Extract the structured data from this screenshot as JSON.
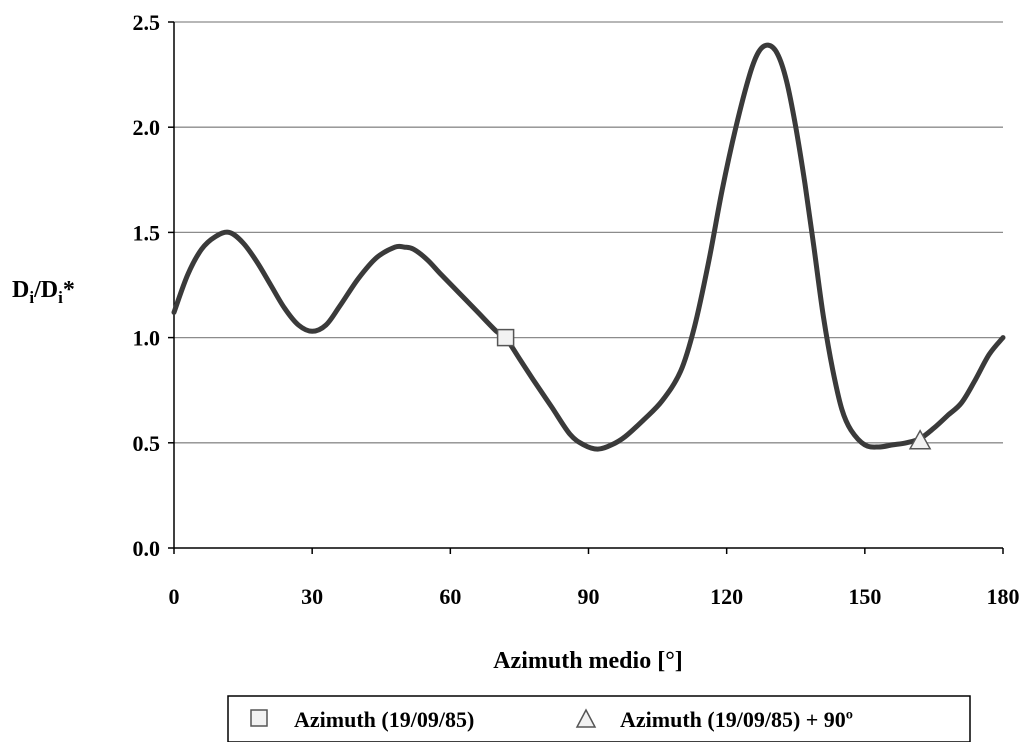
{
  "chart_data": {
    "type": "line",
    "xlabel": "Azimuth medio [°]",
    "ylabel": "Di/Di*",
    "ylabel_main": "D",
    "ylabel_sub": "i",
    "ylabel_sep": "/D",
    "ylabel_sub2": "i",
    "ylabel_star": "*",
    "xlim": [
      0,
      180
    ],
    "ylim": [
      0,
      2.5
    ],
    "xticks": [
      "0",
      "30",
      "60",
      "90",
      "120",
      "150",
      "180"
    ],
    "yticks": [
      "0.0",
      "0.5",
      "1.0",
      "1.5",
      "2.0",
      "2.5"
    ],
    "grid": "horizontal",
    "legend_position": "bottom",
    "line_color": "#3a3a3a",
    "series": [
      {
        "x": [
          0,
          3,
          6,
          9,
          12,
          15,
          18,
          21,
          24,
          27,
          30,
          33,
          36,
          40,
          44,
          48,
          50,
          52,
          55,
          58,
          62,
          66,
          70,
          72,
          75,
          78,
          82,
          86,
          89,
          92,
          95,
          98,
          102,
          106,
          110,
          113,
          116,
          119,
          122,
          125,
          127,
          129,
          131,
          133,
          135,
          137,
          139,
          141,
          143,
          145,
          147,
          150,
          153,
          156,
          159,
          162,
          165,
          168,
          171,
          174,
          177,
          180
        ],
        "values": [
          1.12,
          1.3,
          1.42,
          1.48,
          1.5,
          1.45,
          1.36,
          1.25,
          1.14,
          1.06,
          1.03,
          1.06,
          1.15,
          1.28,
          1.38,
          1.43,
          1.43,
          1.42,
          1.37,
          1.3,
          1.21,
          1.12,
          1.03,
          1.0,
          0.9,
          0.8,
          0.67,
          0.54,
          0.49,
          0.47,
          0.49,
          0.53,
          0.61,
          0.7,
          0.84,
          1.05,
          1.35,
          1.7,
          2.0,
          2.25,
          2.36,
          2.39,
          2.35,
          2.22,
          2.0,
          1.73,
          1.42,
          1.1,
          0.85,
          0.66,
          0.56,
          0.49,
          0.48,
          0.49,
          0.5,
          0.52,
          0.57,
          0.63,
          0.69,
          0.8,
          0.92,
          1.0
        ]
      }
    ],
    "markers": [
      {
        "shape": "square",
        "x": 72,
        "y": 1.0,
        "legend": "Azimuth (19/09/85)"
      },
      {
        "shape": "triangle",
        "x": 162,
        "y": 0.51,
        "legend": "Azimuth (19/09/85) + 90º"
      }
    ]
  }
}
